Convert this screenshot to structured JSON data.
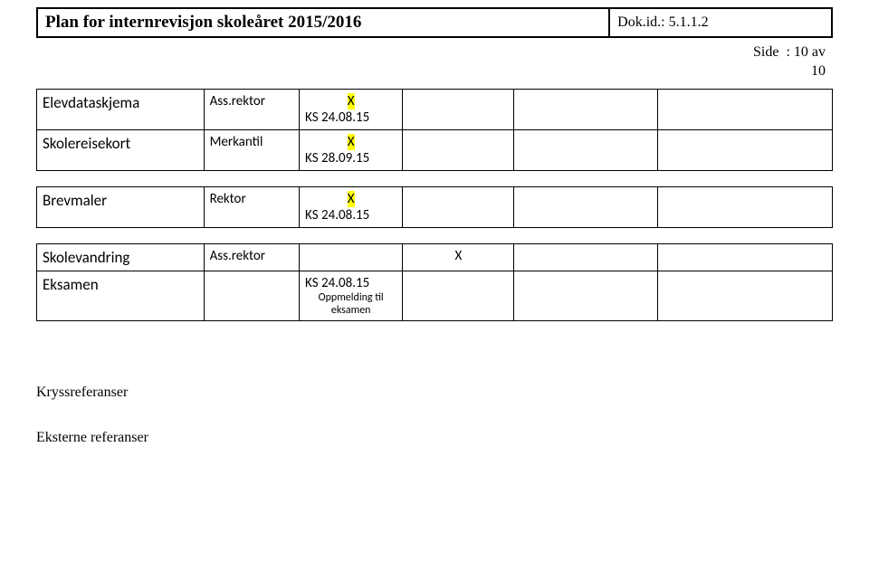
{
  "header": {
    "title": "Plan for internrevisjon skoleåret 2015/2016",
    "dokid_label": "Dok.id.: ",
    "dokid_value": "5.1.1.2"
  },
  "side": {
    "label": "Side",
    "value": ": 10 av",
    "value2": "10"
  },
  "rows": [
    {
      "c1": "Elevdataskjema",
      "c2": "Ass.rektor",
      "c3top": "X",
      "c3bot": "KS 24.08.15",
      "c4": "",
      "c5": "",
      "c6": ""
    },
    {
      "c1": "Skolereisekort",
      "c2": "Merkantil",
      "c3top": "X",
      "c3bot": "KS 28.09.15",
      "c4": "",
      "c5": "",
      "c6": ""
    }
  ],
  "row3": {
    "c1": "Brevmaler",
    "c2": "Rektor",
    "c3top": "X",
    "c3bot": "KS 24.08.15",
    "c4": "",
    "c5": "",
    "c6": ""
  },
  "row4a": {
    "c1": "Skolevandring",
    "c2": "Ass.rektor",
    "c3": "",
    "c4": "X",
    "c5": "",
    "c6": ""
  },
  "row4b": {
    "c1": "Eksamen",
    "c2": "",
    "c3a": "KS 24.08.15",
    "c3b": "Oppmelding til",
    "c3c": "eksamen",
    "c4": "",
    "c5": "",
    "c6": ""
  },
  "refs": {
    "kryss": "Kryssreferanser",
    "eksterne": "Eksterne referanser"
  }
}
